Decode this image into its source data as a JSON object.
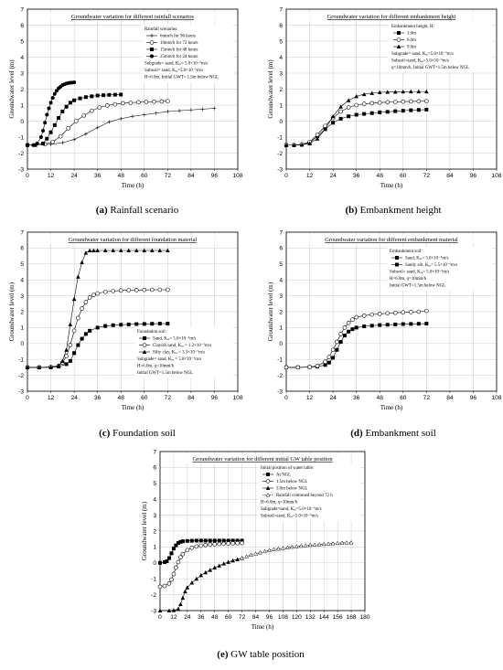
{
  "chart_data": [
    {
      "id": "a",
      "type": "line",
      "title": "Groundwater variation for different rainfall scenarios",
      "xlabel": "Time (h)",
      "ylabel": "Groundwater level (m)",
      "xlim": [
        0,
        108
      ],
      "ylim": [
        -3,
        7
      ],
      "xticks": [
        0,
        12,
        24,
        36,
        48,
        60,
        72,
        84,
        96,
        108
      ],
      "yticks": [
        -3,
        -2,
        -1,
        0,
        1,
        2,
        3,
        4,
        5,
        6,
        7
      ],
      "caption_letter": "(a)",
      "caption_text": "Rainfall scenario",
      "legend_lines": [
        "Rainfall scenarios:",
        "6mm/h for 96 hours",
        "10mm/h for 72 hours",
        "15mm/h for 48 hours",
        "25mm/h for 24 hours",
        "Subgrade= sand, Kₑₐ= 5.0×10⁻⁵m/s",
        "Subsoil= sand, Kₑₐ=5.0×10⁻⁵m/s",
        "H=6.0m, Initial GWT= 1.5m below NGL"
      ],
      "series": [
        {
          "name": "6mm/h for 96 hours",
          "marker": "plus",
          "x": [
            0,
            12,
            18,
            24,
            30,
            36,
            42,
            48,
            54,
            60,
            66,
            72,
            78,
            84,
            90,
            96
          ],
          "y": [
            -1.5,
            -1.45,
            -1.35,
            -1.15,
            -0.8,
            -0.4,
            -0.05,
            0.15,
            0.3,
            0.4,
            0.5,
            0.6,
            0.65,
            0.7,
            0.75,
            0.8
          ]
        },
        {
          "name": "10mm/h for 72 hours",
          "marker": "open-circle",
          "x": [
            0,
            9,
            13,
            17,
            21,
            25,
            29,
            33,
            37,
            41,
            45,
            49,
            53,
            57,
            61,
            65,
            69,
            72
          ],
          "y": [
            -1.5,
            -1.45,
            -1.3,
            -0.95,
            -0.45,
            0.0,
            0.35,
            0.65,
            0.85,
            0.98,
            1.05,
            1.12,
            1.15,
            1.18,
            1.2,
            1.22,
            1.23,
            1.25
          ]
        },
        {
          "name": "15mm/h for 48 hours",
          "marker": "filled-square",
          "x": [
            0,
            4,
            8,
            10,
            12,
            14,
            16,
            18,
            20,
            22,
            24,
            27,
            30,
            33,
            36,
            39,
            42,
            45,
            48
          ],
          "y": [
            -1.5,
            -1.5,
            -1.4,
            -1.1,
            -0.7,
            -0.25,
            0.2,
            0.6,
            0.9,
            1.15,
            1.3,
            1.42,
            1.5,
            1.55,
            1.6,
            1.62,
            1.64,
            1.65,
            1.66
          ]
        },
        {
          "name": "25mm/h for 24 hours",
          "marker": "filled-circle",
          "x": [
            0,
            3,
            5,
            7,
            8,
            9,
            10,
            11,
            12,
            13,
            14,
            15,
            16,
            17,
            18,
            19,
            20,
            21,
            22,
            23,
            24
          ],
          "y": [
            -1.5,
            -1.5,
            -1.4,
            -1.0,
            -0.6,
            -0.1,
            0.4,
            0.8,
            1.15,
            1.45,
            1.7,
            1.9,
            2.05,
            2.15,
            2.25,
            2.3,
            2.35,
            2.38,
            2.4,
            2.41,
            2.42
          ]
        }
      ]
    },
    {
      "id": "b",
      "type": "line",
      "title": "Groundwater variation for different embankment height",
      "xlabel": "Time (h)",
      "ylabel": "Groundwater level (m)",
      "xlim": [
        0,
        108
      ],
      "ylim": [
        -3,
        7
      ],
      "xticks": [
        0,
        12,
        24,
        36,
        48,
        60,
        72,
        84,
        96,
        108
      ],
      "yticks": [
        -3,
        -2,
        -1,
        0,
        1,
        2,
        3,
        4,
        5,
        6,
        7
      ],
      "caption_letter": "(b)",
      "caption_text": "Embankment height",
      "legend_lines": [
        "Embankment height, H:",
        "3.0m",
        "6.0m",
        "9.0m",
        "Subgrade= sand, Kₑₐ=5.0×10⁻⁵m/s",
        "Subsoil=sand, Kₑₐ=5.0×10⁻⁵m/s",
        "q=10mm/h, Initial GWT=1.5m below NGL"
      ],
      "series": [
        {
          "name": "3.0m",
          "marker": "filled-square",
          "x": [
            0,
            4,
            8,
            12,
            16,
            20,
            24,
            28,
            32,
            36,
            40,
            44,
            48,
            52,
            56,
            60,
            64,
            68,
            72
          ],
          "y": [
            -1.5,
            -1.5,
            -1.48,
            -1.35,
            -0.95,
            -0.5,
            -0.1,
            0.15,
            0.3,
            0.4,
            0.45,
            0.5,
            0.55,
            0.58,
            0.62,
            0.65,
            0.68,
            0.7,
            0.72
          ]
        },
        {
          "name": "6.0m",
          "marker": "open-circle",
          "x": [
            0,
            4,
            8,
            12,
            16,
            20,
            24,
            28,
            32,
            36,
            40,
            44,
            48,
            52,
            56,
            60,
            64,
            68,
            72
          ],
          "y": [
            -1.5,
            -1.5,
            -1.45,
            -1.3,
            -0.85,
            -0.3,
            0.2,
            0.6,
            0.85,
            1.0,
            1.08,
            1.12,
            1.16,
            1.18,
            1.2,
            1.22,
            1.23,
            1.24,
            1.25
          ]
        },
        {
          "name": "9.0m",
          "marker": "filled-triangle",
          "x": [
            0,
            4,
            8,
            12,
            16,
            20,
            24,
            28,
            32,
            36,
            40,
            44,
            48,
            52,
            56,
            60,
            64,
            68,
            72
          ],
          "y": [
            -1.5,
            -1.5,
            -1.48,
            -1.4,
            -1.1,
            -0.5,
            0.3,
            0.9,
            1.3,
            1.55,
            1.68,
            1.75,
            1.8,
            1.82,
            1.83,
            1.84,
            1.85,
            1.85,
            1.85
          ]
        }
      ]
    },
    {
      "id": "c",
      "type": "line",
      "title": "Groundwater variation for different foundation material",
      "xlabel": "Time (h)",
      "ylabel": "Groundwater level (m)",
      "xlim": [
        0,
        108
      ],
      "ylim": [
        -3,
        7
      ],
      "xticks": [
        0,
        12,
        24,
        36,
        48,
        60,
        72,
        84,
        96,
        108
      ],
      "yticks": [
        -3,
        -2,
        -1,
        0,
        1,
        2,
        3,
        4,
        5,
        6,
        7
      ],
      "caption_letter": "(c)",
      "caption_text": "Foundation soil",
      "legend_lines": [
        "Foundation soil:",
        "Sand, Kₑₐ= 5.0×10⁻⁵m/s",
        "Clayish sand, Kₑₐ = 1.2×10⁻⁵m/s",
        "Silty clay, Kₑₐ = 3.3×10⁻⁷m/s",
        "Subgrade= sand, Kₑₐ = 5.0×10⁻⁵m/s",
        "H=6.0m, q=10mm/h",
        "Initial GWT=1.5m below NGL"
      ],
      "series": [
        {
          "name": "Sand",
          "marker": "filled-square",
          "x": [
            0,
            6,
            12,
            16,
            20,
            22,
            24,
            26,
            28,
            30,
            32,
            36,
            40,
            44,
            48,
            52,
            56,
            60,
            64,
            68,
            72
          ],
          "y": [
            -1.5,
            -1.5,
            -1.5,
            -1.45,
            -1.3,
            -1.1,
            -0.6,
            -0.1,
            0.3,
            0.6,
            0.8,
            1.0,
            1.1,
            1.15,
            1.18,
            1.2,
            1.22,
            1.23,
            1.24,
            1.25,
            1.25
          ]
        },
        {
          "name": "Clayish sand",
          "marker": "open-circle",
          "x": [
            0,
            6,
            12,
            16,
            18,
            20,
            22,
            24,
            26,
            28,
            30,
            32,
            34,
            36,
            40,
            44,
            48,
            52,
            56,
            60,
            64,
            68,
            72
          ],
          "y": [
            -1.5,
            -1.5,
            -1.48,
            -1.4,
            -1.2,
            -0.8,
            -0.1,
            0.8,
            1.6,
            2.2,
            2.6,
            2.9,
            3.05,
            3.15,
            3.25,
            3.3,
            3.33,
            3.35,
            3.36,
            3.37,
            3.38,
            3.38,
            3.38
          ]
        },
        {
          "name": "Silty clay",
          "marker": "filled-triangle",
          "x": [
            0,
            6,
            12,
            16,
            18,
            20,
            22,
            24,
            26,
            28,
            30,
            32,
            34,
            36,
            40,
            44,
            48,
            52,
            56,
            60,
            64,
            68,
            72
          ],
          "y": [
            -1.5,
            -1.5,
            -1.48,
            -1.4,
            -1.1,
            -0.4,
            1.2,
            2.8,
            4.2,
            5.1,
            5.7,
            5.85,
            5.85,
            5.85,
            5.85,
            5.85,
            5.85,
            5.85,
            5.85,
            5.85,
            5.85,
            5.85,
            5.85
          ]
        }
      ]
    },
    {
      "id": "d",
      "type": "line",
      "title": "Groundwater variation for different embankment material",
      "xlabel": "Time (h)",
      "ylabel": "Groundwater level (m)",
      "xlim": [
        0,
        108
      ],
      "ylim": [
        -3,
        7
      ],
      "xticks": [
        0,
        12,
        24,
        36,
        48,
        60,
        72,
        84,
        96,
        108
      ],
      "yticks": [
        -3,
        -2,
        -1,
        0,
        1,
        2,
        3,
        4,
        5,
        6,
        7
      ],
      "caption_letter": "(d)",
      "caption_text": "Embankment soil",
      "legend_lines": [
        "Embankment soil:",
        "Sand, Kₑₐ= 5.0×10⁻⁵m/s",
        "Sandy silt, Kₑₐ= 5.5×10⁻⁶m/s",
        "Subsoil= sand, Kₑₐ= 5.0×10⁻⁵m/s",
        "H=6.0m, q=10mm/h",
        "Initial GWT=1.5m below NGL"
      ],
      "series": [
        {
          "name": "Sand",
          "marker": "filled-square",
          "x": [
            0,
            6,
            12,
            16,
            20,
            22,
            24,
            26,
            28,
            30,
            32,
            34,
            36,
            40,
            44,
            48,
            52,
            56,
            60,
            64,
            68,
            72
          ],
          "y": [
            -1.5,
            -1.5,
            -1.48,
            -1.45,
            -1.35,
            -1.2,
            -0.9,
            -0.4,
            0.1,
            0.5,
            0.75,
            0.9,
            1.0,
            1.08,
            1.12,
            1.16,
            1.18,
            1.2,
            1.22,
            1.23,
            1.24,
            1.25
          ]
        },
        {
          "name": "Sandy silt",
          "marker": "open-circle",
          "x": [
            0,
            6,
            12,
            16,
            20,
            22,
            24,
            26,
            28,
            30,
            32,
            34,
            36,
            40,
            44,
            48,
            52,
            56,
            60,
            64,
            68,
            72
          ],
          "y": [
            -1.5,
            -1.5,
            -1.48,
            -1.4,
            -1.15,
            -0.85,
            -0.4,
            0.1,
            0.6,
            1.0,
            1.3,
            1.5,
            1.65,
            1.75,
            1.82,
            1.86,
            1.9,
            1.93,
            1.96,
            1.98,
            2.0,
            2.05
          ]
        }
      ]
    },
    {
      "id": "e",
      "type": "line",
      "title": "Groundwater variation for different initial GW table position",
      "xlabel": "Time (h)",
      "ylabel": "Groundwater level (m)",
      "xlim": [
        0,
        180
      ],
      "ylim": [
        -3,
        7
      ],
      "xticks": [
        0,
        12,
        24,
        36,
        48,
        60,
        72,
        84,
        96,
        108,
        120,
        132,
        144,
        156,
        168,
        180
      ],
      "yticks": [
        -3,
        -2,
        -1,
        0,
        1,
        2,
        3,
        4,
        5,
        6,
        7
      ],
      "caption_letter": "(e)",
      "caption_text": "GW table position",
      "legend_lines": [
        "Initial position of water table:",
        "At NGL",
        "1.5m below NGL",
        "3.0m below NGL",
        "Rainfall continued beyond 72 h",
        "H=6.0m, q=10mm/h",
        "Subgrade=sand, Kₑₐ=5.0×10⁻⁵m/s",
        "Subsoil=sand, Kₑₐ=5.0×10⁻⁵m/s"
      ],
      "series": [
        {
          "name": "At NGL",
          "marker": "filled-square",
          "x": [
            0,
            4,
            6,
            8,
            10,
            12,
            14,
            16,
            18,
            20,
            24,
            28,
            32,
            36,
            40,
            44,
            48,
            52,
            56,
            60,
            64,
            68,
            72
          ],
          "y": [
            0.0,
            0.05,
            0.1,
            0.3,
            0.6,
            0.9,
            1.1,
            1.25,
            1.32,
            1.36,
            1.38,
            1.39,
            1.4,
            1.4,
            1.4,
            1.4,
            1.4,
            1.4,
            1.4,
            1.4,
            1.4,
            1.4,
            1.4
          ]
        },
        {
          "name": "1.5m below NGL",
          "marker": "open-circle",
          "x": [
            0,
            4,
            8,
            10,
            12,
            14,
            16,
            18,
            20,
            24,
            28,
            32,
            36,
            40,
            44,
            48,
            52,
            56,
            60,
            64,
            68,
            72
          ],
          "y": [
            -1.5,
            -1.45,
            -1.3,
            -1.05,
            -0.7,
            -0.3,
            0.05,
            0.35,
            0.55,
            0.8,
            0.95,
            1.03,
            1.08,
            1.12,
            1.15,
            1.17,
            1.19,
            1.2,
            1.22,
            1.23,
            1.24,
            1.25
          ]
        },
        {
          "name": "3.0m below NGL",
          "marker": "filled-triangle",
          "x": [
            0,
            8,
            12,
            16,
            18,
            20,
            22,
            24,
            28,
            32,
            36,
            40,
            44,
            48,
            52,
            56,
            60,
            64,
            68,
            72
          ],
          "y": [
            -3.0,
            -3.0,
            -2.98,
            -2.9,
            -2.6,
            -2.2,
            -1.8,
            -1.55,
            -1.25,
            -1.0,
            -0.78,
            -0.6,
            -0.45,
            -0.3,
            -0.18,
            -0.05,
            0.05,
            0.15,
            0.22,
            0.3
          ]
        },
        {
          "name": "Rainfall continued beyond 72 h",
          "marker": "open-triangle",
          "x": [
            72,
            76,
            80,
            84,
            88,
            92,
            96,
            100,
            104,
            108,
            112,
            116,
            120,
            124,
            128,
            132,
            136,
            140,
            144,
            148,
            152,
            156,
            160,
            164,
            168
          ],
          "y": [
            0.3,
            0.4,
            0.5,
            0.58,
            0.65,
            0.72,
            0.78,
            0.84,
            0.88,
            0.92,
            0.96,
            1.0,
            1.03,
            1.06,
            1.09,
            1.12,
            1.14,
            1.16,
            1.18,
            1.2,
            1.22,
            1.24,
            1.26,
            1.27,
            1.28
          ]
        }
      ]
    }
  ]
}
